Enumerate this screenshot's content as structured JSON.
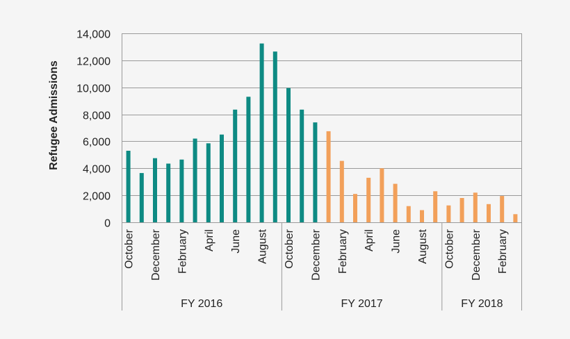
{
  "chart_data": {
    "type": "bar",
    "title": "",
    "xlabel": "",
    "ylabel": "Refugee Admissions",
    "ylim": [
      0,
      14000
    ],
    "yticks": [
      0,
      2000,
      4000,
      6000,
      8000,
      10000,
      12000,
      14000
    ],
    "ytick_labels": [
      "0",
      "2,000",
      "4,000",
      "6,000",
      "8,000",
      "10,000",
      "12,000",
      "14,000"
    ],
    "grid": true,
    "colors": {
      "period_a": "#0e8a83",
      "period_b": "#f2a05a"
    },
    "categories": [
      "October",
      "November",
      "December",
      "January",
      "February",
      "March",
      "April",
      "May",
      "June",
      "July",
      "August",
      "September",
      "October",
      "November",
      "December",
      "January",
      "February",
      "March",
      "April",
      "May",
      "June",
      "July",
      "August",
      "September",
      "October",
      "November",
      "December",
      "January",
      "February",
      "March"
    ],
    "values": [
      5300,
      3650,
      4750,
      4350,
      4650,
      6200,
      5850,
      6500,
      8350,
      9300,
      13250,
      12650,
      9950,
      8350,
      7400,
      6750,
      4550,
      2100,
      3300,
      4000,
      2850,
      1200,
      900,
      2300,
      1250,
      1800,
      2200,
      1350,
      1950,
      600
    ],
    "bar_color_keys": [
      "period_a",
      "period_a",
      "period_a",
      "period_a",
      "period_a",
      "period_a",
      "period_a",
      "period_a",
      "period_a",
      "period_a",
      "period_a",
      "period_a",
      "period_a",
      "period_a",
      "period_a",
      "period_b",
      "period_b",
      "period_b",
      "period_b",
      "period_b",
      "period_b",
      "period_b",
      "period_b",
      "period_b",
      "period_b",
      "period_b",
      "period_b",
      "period_b",
      "period_b",
      "period_b"
    ],
    "x_labels_shown": [
      {
        "index": 0,
        "label": "October"
      },
      {
        "index": 2,
        "label": "December"
      },
      {
        "index": 4,
        "label": "February"
      },
      {
        "index": 6,
        "label": "April"
      },
      {
        "index": 8,
        "label": "June"
      },
      {
        "index": 10,
        "label": "August"
      },
      {
        "index": 12,
        "label": "October"
      },
      {
        "index": 14,
        "label": "December"
      },
      {
        "index": 16,
        "label": "February"
      },
      {
        "index": 18,
        "label": "April"
      },
      {
        "index": 20,
        "label": "June"
      },
      {
        "index": 22,
        "label": "August"
      },
      {
        "index": 24,
        "label": "October"
      },
      {
        "index": 26,
        "label": "December"
      },
      {
        "index": 28,
        "label": "February"
      }
    ],
    "groups": [
      {
        "label": "FY 2016",
        "start": 0,
        "end": 11
      },
      {
        "label": "FY 2017",
        "start": 12,
        "end": 23
      },
      {
        "label": "FY 2018",
        "start": 24,
        "end": 29
      }
    ]
  }
}
